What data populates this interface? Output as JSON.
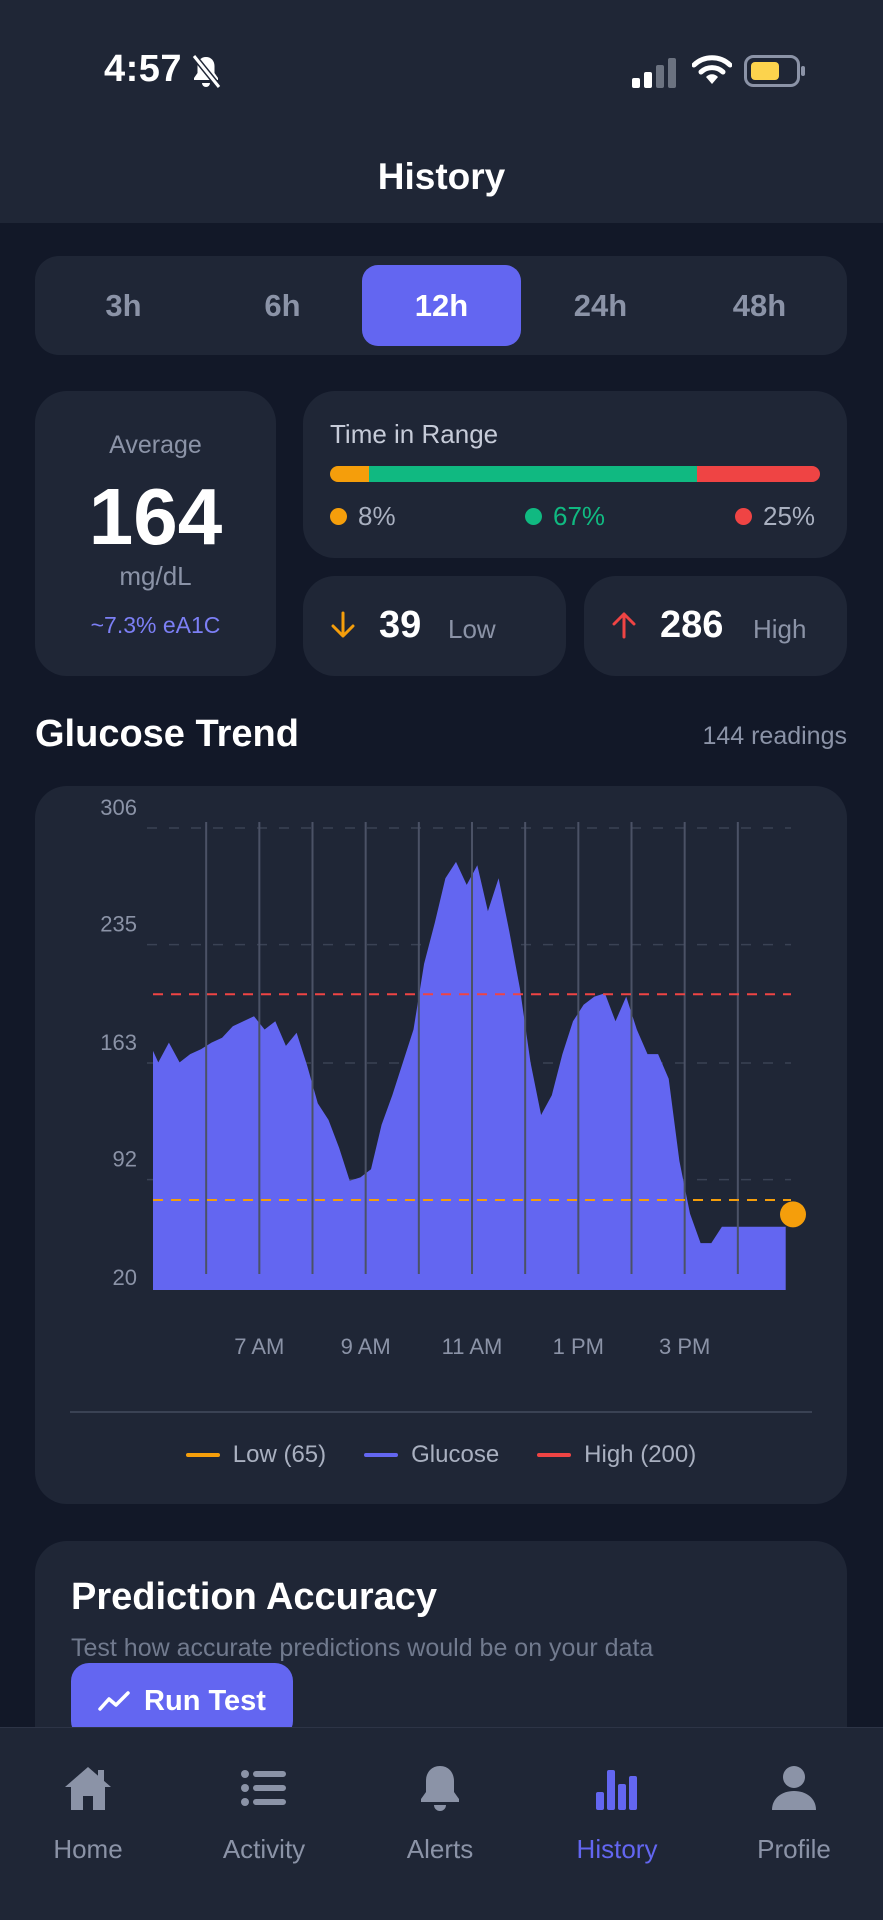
{
  "status_bar": {
    "time": "4:57"
  },
  "header": {
    "title": "History"
  },
  "range_tabs": [
    {
      "label": "3h",
      "active": false
    },
    {
      "label": "6h",
      "active": false
    },
    {
      "label": "12h",
      "active": true
    },
    {
      "label": "24h",
      "active": false
    },
    {
      "label": "48h",
      "active": false
    }
  ],
  "average": {
    "label": "Average",
    "value": "164",
    "unit": "mg/dL",
    "a1c": "~7.3% eA1C"
  },
  "time_in_range": {
    "title": "Time in Range",
    "low": "8%",
    "in_range": "67%",
    "high": "25%",
    "low_fraction": 0.08,
    "in_range_fraction": 0.67,
    "high_fraction": 0.25
  },
  "low_stat": {
    "value": "39",
    "label": "Low"
  },
  "high_stat": {
    "value": "286",
    "label": "High"
  },
  "trend": {
    "title": "Glucose Trend",
    "readings": "144 readings"
  },
  "chart_data": {
    "type": "area",
    "title": "",
    "y_ticks": [
      "306",
      "235",
      "163",
      "92",
      "20"
    ],
    "ylim": [
      20,
      306
    ],
    "x_ticks": [
      "7 AM",
      "9 AM",
      "11 AM",
      "1 PM",
      "3 PM"
    ],
    "x_tick_hours": [
      7,
      9,
      11,
      13,
      15
    ],
    "xlim_hours": [
      5,
      17
    ],
    "low_threshold": 65,
    "high_threshold": 200,
    "grid": true,
    "legend": [
      {
        "name": "Low (65)",
        "color": "#f59e0b"
      },
      {
        "name": "Glucose",
        "color": "#6366f1"
      },
      {
        "name": "High (200)",
        "color": "#ef4444"
      }
    ],
    "series": [
      {
        "name": "Glucose",
        "x_hours": [
          5.0,
          5.1,
          5.3,
          5.5,
          5.7,
          5.9,
          6.1,
          6.3,
          6.5,
          6.7,
          6.9,
          7.1,
          7.3,
          7.5,
          7.7,
          7.9,
          8.1,
          8.3,
          8.5,
          8.7,
          8.9,
          9.1,
          9.3,
          9.5,
          9.7,
          9.9,
          10.1,
          10.3,
          10.5,
          10.7,
          10.9,
          11.1,
          11.3,
          11.5,
          11.7,
          11.9,
          12.1,
          12.3,
          12.5,
          12.7,
          12.9,
          13.1,
          13.3,
          13.5,
          13.7,
          13.9,
          14.1,
          14.3,
          14.5,
          14.7,
          14.9,
          15.1,
          15.3,
          15.5,
          15.7,
          15.9,
          16.1,
          16.3,
          16.5,
          16.7,
          16.9
        ],
        "values": [
          157,
          150,
          162,
          150,
          155,
          158,
          162,
          165,
          172,
          175,
          178,
          170,
          175,
          160,
          168,
          148,
          125,
          115,
          98,
          78,
          80,
          85,
          112,
          130,
          150,
          170,
          210,
          235,
          262,
          272,
          258,
          270,
          242,
          262,
          230,
          195,
          150,
          118,
          130,
          155,
          175,
          185,
          190,
          192,
          175,
          190,
          170,
          155,
          155,
          140,
          90,
          58,
          40,
          40,
          50,
          50,
          50,
          50,
          50,
          50,
          50
        ]
      }
    ],
    "current_value": 49
  },
  "prediction": {
    "title": "Prediction Accuracy",
    "subtitle": "Test how accurate predictions would be on your data",
    "button": "Run Test"
  },
  "nav": [
    {
      "label": "Home",
      "icon": "home-icon",
      "active": false
    },
    {
      "label": "Activity",
      "icon": "list-icon",
      "active": false
    },
    {
      "label": "Alerts",
      "icon": "bell-icon",
      "active": false
    },
    {
      "label": "History",
      "icon": "bar-chart-icon",
      "active": true
    },
    {
      "label": "Profile",
      "icon": "user-icon",
      "active": false
    }
  ],
  "colors": {
    "accent": "#6366f1",
    "low": "#f59e0b",
    "in_range": "#10b981",
    "high": "#ef4444"
  }
}
